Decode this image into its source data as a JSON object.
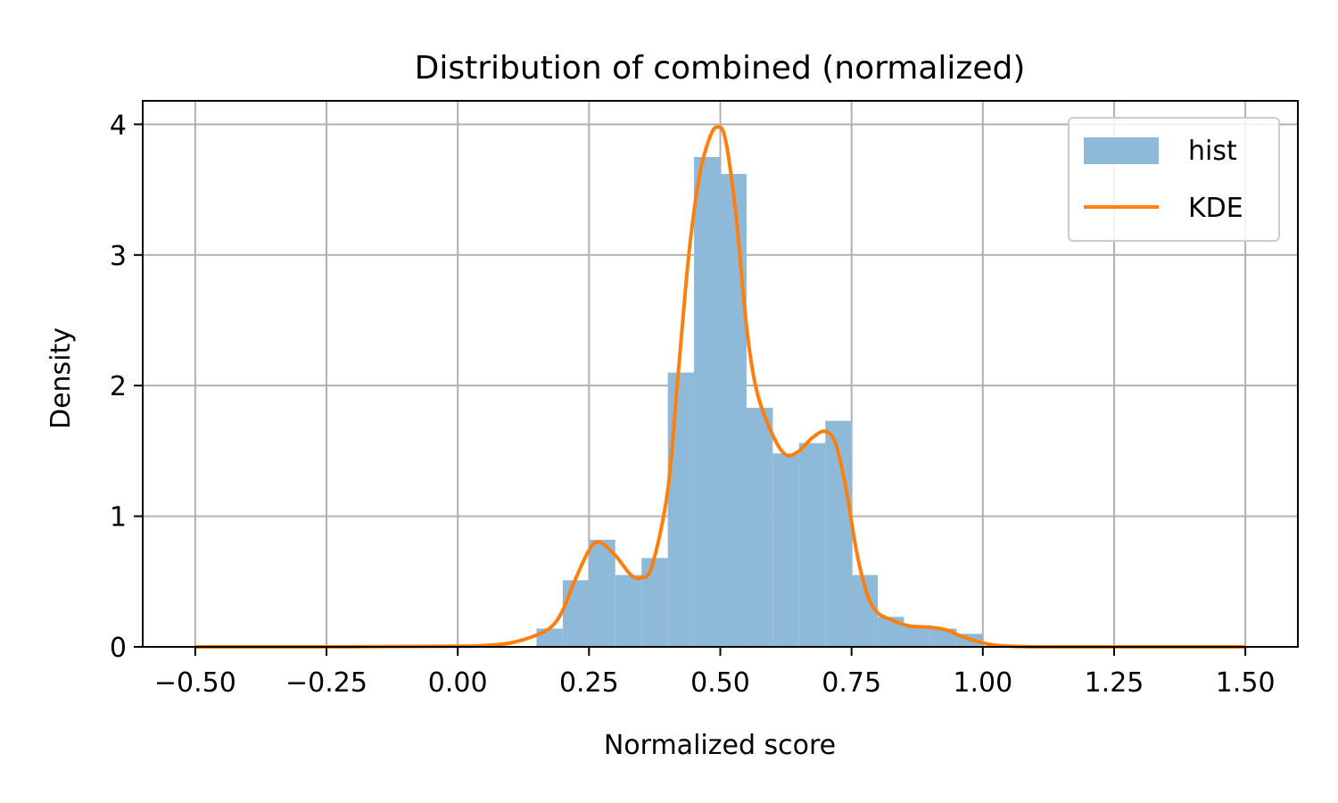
{
  "chart_data": {
    "type": "bar",
    "title": "Distribution of combined (normalized)",
    "xlabel": "Normalized score",
    "ylabel": "Density",
    "xlim": [
      -0.6,
      1.6
    ],
    "ylim": [
      0,
      4.18
    ],
    "x_ticks": [
      -0.5,
      -0.25,
      0.0,
      0.25,
      0.5,
      0.75,
      1.0,
      1.25,
      1.5
    ],
    "x_tick_labels": [
      "−0.50",
      "−0.25",
      "0.00",
      "0.25",
      "0.50",
      "0.75",
      "1.00",
      "1.25",
      "1.50"
    ],
    "y_ticks": [
      0,
      1,
      2,
      3,
      4
    ],
    "y_tick_labels": [
      "0",
      "1",
      "2",
      "3",
      "4"
    ],
    "grid": true,
    "legend_position": "top-right",
    "legend": [
      {
        "label": "hist",
        "kind": "patch",
        "color": "#8fb9d8"
      },
      {
        "label": "KDE",
        "kind": "line",
        "color": "#ff7f0e"
      }
    ],
    "histogram": {
      "name": "hist",
      "color": "#8fb9d8",
      "bins": [
        {
          "x0": 0.15,
          "x1": 0.2,
          "density": 0.14
        },
        {
          "x0": 0.2,
          "x1": 0.25,
          "density": 0.51
        },
        {
          "x0": 0.25,
          "x1": 0.3,
          "density": 0.82
        },
        {
          "x0": 0.3,
          "x1": 0.35,
          "density": 0.55
        },
        {
          "x0": 0.35,
          "x1": 0.4,
          "density": 0.68
        },
        {
          "x0": 0.4,
          "x1": 0.45,
          "density": 2.1
        },
        {
          "x0": 0.45,
          "x1": 0.5,
          "density": 3.75
        },
        {
          "x0": 0.5,
          "x1": 0.55,
          "density": 3.62
        },
        {
          "x0": 0.55,
          "x1": 0.6,
          "density": 1.83
        },
        {
          "x0": 0.6,
          "x1": 0.65,
          "density": 1.48
        },
        {
          "x0": 0.65,
          "x1": 0.7,
          "density": 1.56
        },
        {
          "x0": 0.7,
          "x1": 0.75,
          "density": 1.73
        },
        {
          "x0": 0.75,
          "x1": 0.8,
          "density": 0.55
        },
        {
          "x0": 0.8,
          "x1": 0.85,
          "density": 0.23
        },
        {
          "x0": 0.85,
          "x1": 0.9,
          "density": 0.16
        },
        {
          "x0": 0.9,
          "x1": 0.95,
          "density": 0.14
        },
        {
          "x0": 0.95,
          "x1": 1.0,
          "density": 0.1
        }
      ]
    },
    "kde": {
      "name": "KDE",
      "color": "#ff7f0e",
      "x": [
        -0.5,
        -0.25,
        0.0,
        0.05,
        0.1,
        0.15,
        0.18,
        0.2,
        0.22,
        0.25,
        0.27,
        0.3,
        0.33,
        0.35,
        0.37,
        0.4,
        0.42,
        0.44,
        0.46,
        0.48,
        0.495,
        0.51,
        0.53,
        0.55,
        0.57,
        0.6,
        0.625,
        0.65,
        0.675,
        0.7,
        0.72,
        0.74,
        0.76,
        0.78,
        0.8,
        0.83,
        0.86,
        0.9,
        0.93,
        0.96,
        1.0,
        1.03,
        1.1,
        1.25,
        1.5
      ],
      "y": [
        0.0,
        0.0,
        0.005,
        0.01,
        0.03,
        0.09,
        0.16,
        0.28,
        0.48,
        0.74,
        0.8,
        0.7,
        0.55,
        0.53,
        0.62,
        1.2,
        2.1,
        3.0,
        3.6,
        3.9,
        3.98,
        3.88,
        3.3,
        2.45,
        1.95,
        1.62,
        1.47,
        1.5,
        1.6,
        1.65,
        1.55,
        1.2,
        0.72,
        0.4,
        0.26,
        0.2,
        0.16,
        0.15,
        0.13,
        0.08,
        0.03,
        0.01,
        0.0,
        0.0,
        0.0
      ]
    }
  }
}
